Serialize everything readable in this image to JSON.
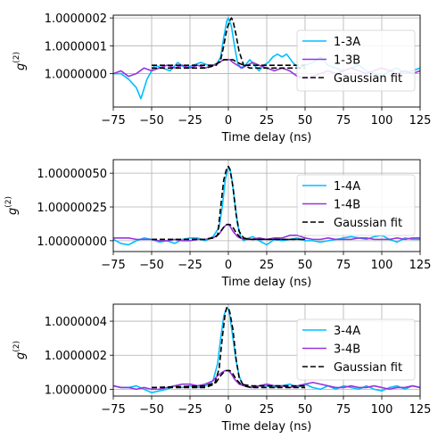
{
  "colors": {
    "A": "#00bfff",
    "B": "#9933dd",
    "fit": "#000000",
    "grid": "#b0b0b0"
  },
  "chart_data": [
    {
      "type": "line",
      "xlabel": "Time delay (ns)",
      "ylabel": "g(2)",
      "ylabel_base": "g",
      "ylabel_sup": "(2)",
      "xlim": [
        -75,
        125
      ],
      "ylim": [
        0.99999988,
        1.00000021
      ],
      "xticks": [
        "−75",
        "−50",
        "−25",
        "0",
        "25",
        "50",
        "75",
        "100",
        "125"
      ],
      "yticks": [
        {
          "value": 1.0,
          "label": "1.0000000"
        },
        {
          "value": 1.0000001,
          "label": "1.0000001"
        },
        {
          "value": 1.0000002,
          "label": "1.0000002"
        }
      ],
      "grid": true,
      "legend_position": "upper right",
      "series": [
        {
          "name": "1-3A",
          "color_key": "A",
          "x": [
            -75,
            -70,
            -65,
            -60,
            -57,
            -53,
            -48,
            -43,
            -38,
            -33,
            -28,
            -23,
            -18,
            -13,
            -8,
            -5,
            -3,
            -1,
            0,
            2,
            4,
            6,
            8,
            11,
            14,
            17,
            20,
            23,
            26,
            29,
            32,
            35,
            38,
            42,
            46,
            50,
            55,
            60,
            65,
            70,
            75,
            80,
            85,
            90,
            95,
            100,
            105,
            110,
            115,
            120,
            125
          ],
          "y": [
            1.0,
            1.0,
            0.99999998,
            0.99999995,
            0.99999991,
            0.99999998,
            1.00000003,
            1.00000002,
            1.00000001,
            1.00000004,
            1.00000002,
            1.00000003,
            1.00000004,
            1.00000003,
            1.00000003,
            1.00000006,
            1.00000013,
            1.00000019,
            1.0000002,
            1.00000017,
            1.0000001,
            1.00000004,
            1.00000002,
            1.00000003,
            1.00000005,
            1.00000003,
            1.00000001,
            1.00000003,
            1.00000004,
            1.00000006,
            1.00000007,
            1.00000006,
            1.00000007,
            1.00000004,
            1.00000002,
            1.00000003,
            1.00000004,
            1.00000006,
            1.00000003,
            1.00000002,
            1.00000001,
            1.00000002,
            1.00000003,
            1.00000001,
            1.0,
            0.99999999,
            1.00000001,
            1.00000002,
            1.0,
            1.00000001,
            1.00000002
          ]
        },
        {
          "name": "1-3B",
          "color_key": "B",
          "x": [
            -75,
            -70,
            -65,
            -60,
            -55,
            -50,
            -45,
            -40,
            -35,
            -30,
            -25,
            -20,
            -15,
            -10,
            -6,
            -3,
            -1,
            1,
            3,
            6,
            9,
            12,
            16,
            20,
            25,
            30,
            35,
            40,
            45,
            50,
            55,
            60,
            65,
            70,
            75,
            80,
            85,
            90,
            95,
            100,
            105,
            110,
            115,
            120,
            125
          ],
          "y": [
            1.0,
            1.00000001,
            0.99999999,
            1.0,
            1.00000002,
            1.00000001,
            1.00000002,
            1.00000003,
            1.00000002,
            1.00000003,
            1.00000002,
            1.00000003,
            1.00000002,
            1.00000003,
            1.00000004,
            1.00000005,
            1.00000005,
            1.00000005,
            1.00000004,
            1.00000003,
            1.00000002,
            1.00000003,
            1.00000004,
            1.00000003,
            1.00000002,
            1.00000001,
            1.00000002,
            1.00000001,
            0.99999999,
            0.99999998,
            0.99999999,
            1.0,
            1.00000001,
            1.0,
            1.00000001,
            1.00000002,
            1.00000001,
            1.0,
            1.00000001,
            1.00000002,
            1.00000001,
            1.0,
            1.00000001,
            1.0,
            1.00000001
          ]
        },
        {
          "name": "Gaussian fit",
          "color_key": "fit",
          "dashed": true,
          "x": [
            -50,
            -15,
            -10,
            -6,
            -3,
            -1,
            0,
            1,
            3,
            6,
            10,
            15,
            50
          ],
          "y": [
            1.00000003,
            1.00000003,
            1.00000003,
            1.00000004,
            1.00000005,
            1.00000005,
            1.00000005,
            1.00000005,
            1.00000005,
            1.00000004,
            1.00000003,
            1.00000003,
            1.00000003
          ]
        },
        {
          "name": "Gaussian fit",
          "color_key": "fit",
          "dashed": true,
          "hide_legend": true,
          "x": [
            -50,
            -15,
            -8,
            -5,
            -3,
            -1,
            1,
            2,
            3,
            5,
            7,
            10,
            14,
            20,
            50
          ],
          "y": [
            1.00000002,
            1.00000002,
            1.00000003,
            1.00000005,
            1.0000001,
            1.00000016,
            1.00000019,
            1.0000002,
            1.00000019,
            1.00000014,
            1.00000008,
            1.00000003,
            1.00000002,
            1.00000002,
            1.00000002
          ]
        }
      ]
    },
    {
      "type": "line",
      "xlabel": "Time delay (ns)",
      "ylabel": "g(2)",
      "ylabel_base": "g",
      "ylabel_sup": "(2)",
      "xlim": [
        -75,
        125
      ],
      "ylim": [
        0.99999992,
        1.0000006
      ],
      "xticks": [
        "−75",
        "−50",
        "−25",
        "0",
        "25",
        "50",
        "75",
        "100",
        "125"
      ],
      "yticks": [
        {
          "value": 1.0,
          "label": "1.00000000"
        },
        {
          "value": 1.00000025,
          "label": "1.00000025"
        },
        {
          "value": 1.0000005,
          "label": "1.00000050"
        }
      ],
      "grid": true,
      "legend_position": "upper right",
      "series": [
        {
          "name": "1-4A",
          "color_key": "A",
          "x": [
            -75,
            -70,
            -65,
            -60,
            -55,
            -50,
            -45,
            -40,
            -35,
            -30,
            -25,
            -20,
            -15,
            -10,
            -6,
            -4,
            -2,
            0,
            1,
            2,
            4,
            6,
            8,
            10,
            13,
            16,
            20,
            25,
            30,
            35,
            40,
            45,
            50,
            55,
            60,
            65,
            70,
            75,
            80,
            85,
            90,
            95,
            100,
            105,
            110,
            115,
            120,
            125
          ],
          "y": [
            1.00000001,
            0.99999998,
            0.99999997,
            1.0,
            1.00000002,
            1.00000001,
            0.99999999,
            1.0,
            0.99999998,
            1.00000001,
            1.00000002,
            1.00000002,
            1.0,
            1.00000003,
            1.0000001,
            1.00000025,
            1.00000045,
            1.00000055,
            1.00000053,
            1.00000048,
            1.0000003,
            1.00000012,
            1.00000003,
            1.0,
            1.00000002,
            1.00000003,
            1.0,
            0.99999997,
            1.00000001,
            1.0,
            1.00000001,
            1.00000002,
            1.0,
            1.0,
            0.99999999,
            1.0,
            1.00000001,
            1.00000002,
            1.00000003,
            1.00000002,
            1.00000001,
            1.00000003,
            1.00000004,
            1.00000001,
            0.99999999,
            1.00000002,
            1.00000001,
            1.00000001
          ]
        },
        {
          "name": "1-4B",
          "color_key": "B",
          "x": [
            -75,
            -70,
            -65,
            -60,
            -55,
            -50,
            -45,
            -40,
            -35,
            -30,
            -25,
            -20,
            -15,
            -10,
            -6,
            -3,
            -1,
            0,
            1,
            3,
            6,
            10,
            15,
            20,
            25,
            30,
            35,
            40,
            45,
            50,
            55,
            60,
            65,
            70,
            75,
            80,
            85,
            90,
            95,
            100,
            105,
            110,
            115,
            120,
            125
          ],
          "y": [
            1.00000002,
            1.00000002,
            1.00000002,
            1.00000001,
            1.00000001,
            1.00000001,
            1.0,
            1.0,
            1.00000001,
            1.0,
            1.0,
            1.00000001,
            1.00000001,
            1.00000002,
            1.00000005,
            1.0000001,
            1.00000012,
            1.00000012,
            1.00000011,
            1.00000007,
            1.00000003,
            1.00000001,
            1.00000001,
            1.00000002,
            1.00000001,
            1.00000002,
            1.00000002,
            1.00000004,
            1.00000004,
            1.00000002,
            1.00000001,
            1.00000001,
            1.00000002,
            1.00000001,
            1.00000001,
            1.00000001,
            1.00000002,
            1.00000002,
            1.00000001,
            1.00000001,
            1.00000001,
            1.00000002,
            1.00000001,
            1.00000002,
            1.00000002
          ]
        },
        {
          "name": "Gaussian fit",
          "color_key": "fit",
          "dashed": true,
          "x": [
            -50,
            -15,
            -10,
            -7,
            -5,
            -3,
            -1,
            0,
            1,
            3,
            5,
            7,
            10,
            15,
            50
          ],
          "y": [
            1.00000001,
            1.00000001,
            1.00000002,
            1.00000004,
            1.00000025,
            1.00000045,
            1.00000054,
            1.00000055,
            1.00000053,
            1.0000004,
            1.0000002,
            1.00000007,
            1.00000002,
            1.00000001,
            1.00000001
          ]
        },
        {
          "name": "Gaussian fit",
          "color_key": "fit",
          "dashed": true,
          "hide_legend": true,
          "x": [
            -50,
            -15,
            -8,
            -5,
            -3,
            -1,
            0,
            1,
            3,
            5,
            8,
            15,
            50
          ],
          "y": [
            1.00000001,
            1.00000001,
            1.00000003,
            1.00000007,
            1.0000001,
            1.00000012,
            1.00000012,
            1.00000012,
            1.0000001,
            1.00000006,
            1.00000002,
            1.00000001,
            1.00000001
          ]
        }
      ]
    },
    {
      "type": "line",
      "xlabel": "Time delay (ns)",
      "ylabel": "g(2)",
      "ylabel_base": "g",
      "ylabel_sup": "(2)",
      "xlim": [
        -75,
        125
      ],
      "ylim": [
        0.99999996,
        1.0000005
      ],
      "xticks": [
        "−75",
        "−50",
        "−25",
        "0",
        "25",
        "50",
        "75",
        "100",
        "125"
      ],
      "yticks": [
        {
          "value": 1.0,
          "label": "1.0000000"
        },
        {
          "value": 1.0000002,
          "label": "1.0000002"
        },
        {
          "value": 1.0000004,
          "label": "1.0000004"
        }
      ],
      "grid": true,
      "legend_position": "upper right",
      "series": [
        {
          "name": "3-4A",
          "color_key": "A",
          "x": [
            -75,
            -70,
            -65,
            -60,
            -55,
            -50,
            -45,
            -40,
            -35,
            -30,
            -25,
            -20,
            -15,
            -10,
            -7,
            -5,
            -3,
            -1,
            0,
            1,
            3,
            5,
            7,
            9,
            12,
            15,
            20,
            25,
            30,
            35,
            40,
            45,
            50,
            55,
            60,
            65,
            70,
            75,
            80,
            85,
            90,
            95,
            100,
            105,
            110,
            115,
            120,
            125
          ],
          "y": [
            1.00000002,
            1.00000001,
            1.00000001,
            1.00000002,
            1.0,
            0.99999998,
            0.99999999,
            1.0,
            1.00000002,
            1.00000001,
            1.00000002,
            1.00000001,
            1.00000002,
            1.00000005,
            1.00000015,
            1.0000003,
            1.00000043,
            1.00000048,
            1.00000047,
            1.00000043,
            1.0000003,
            1.00000017,
            1.00000008,
            1.00000003,
            1.00000002,
            1.00000001,
            1.00000002,
            1.00000002,
            1.00000001,
            1.00000002,
            1.00000003,
            1.00000001,
            1.00000003,
            1.00000001,
            1.0,
            1.00000002,
            1.0,
            1.00000002,
            1.00000001,
            1.0,
            1.00000002,
            1.0,
            0.99999999,
            1.00000001,
            1.00000002,
            1.0,
            1.00000002,
            1.00000001
          ]
        },
        {
          "name": "3-4B",
          "color_key": "B",
          "x": [
            -75,
            -70,
            -65,
            -60,
            -55,
            -50,
            -45,
            -40,
            -35,
            -30,
            -25,
            -20,
            -15,
            -10,
            -7,
            -4,
            -2,
            0,
            2,
            4,
            7,
            10,
            15,
            20,
            25,
            30,
            35,
            40,
            45,
            50,
            55,
            60,
            65,
            70,
            75,
            80,
            85,
            90,
            95,
            100,
            105,
            110,
            115,
            120,
            125
          ],
          "y": [
            1.00000002,
            1.00000001,
            1.00000001,
            1.0,
            1.00000001,
            1.0,
            1.0,
            1.00000001,
            1.00000002,
            1.00000003,
            1.00000003,
            1.00000002,
            1.00000003,
            1.00000005,
            1.00000008,
            1.0000001,
            1.00000011,
            1.00000011,
            1.00000009,
            1.00000006,
            1.00000003,
            1.00000002,
            1.00000001,
            1.00000002,
            1.00000003,
            1.00000002,
            1.00000002,
            1.00000001,
            1.00000002,
            1.00000003,
            1.00000004,
            1.00000003,
            1.00000002,
            1.00000001,
            1.00000001,
            1.00000002,
            1.00000001,
            1.00000001,
            1.00000002,
            1.00000001,
            1.0,
            1.00000001,
            1.00000001,
            1.00000002,
            1.00000001
          ]
        },
        {
          "name": "Gaussian fit",
          "color_key": "fit",
          "dashed": true,
          "x": [
            -50,
            -15,
            -9,
            -6,
            -4,
            -2,
            -1,
            0,
            1,
            3,
            5,
            7,
            10,
            15,
            50
          ],
          "y": [
            1.00000001,
            1.00000001,
            1.00000003,
            1.00000012,
            1.0000003,
            1.00000045,
            1.00000048,
            1.00000048,
            1.00000045,
            1.00000035,
            1.00000018,
            1.00000007,
            1.00000002,
            1.00000001,
            1.00000001
          ]
        },
        {
          "name": "Gaussian fit",
          "color_key": "fit",
          "dashed": true,
          "hide_legend": true,
          "x": [
            -50,
            -15,
            -8,
            -5,
            -3,
            -1,
            0,
            1,
            3,
            5,
            8,
            15,
            50
          ],
          "y": [
            1.00000001,
            1.00000002,
            1.00000004,
            1.00000008,
            1.0000001,
            1.00000011,
            1.00000011,
            1.00000011,
            1.00000009,
            1.00000006,
            1.00000003,
            1.00000002,
            1.00000002
          ]
        }
      ]
    }
  ]
}
